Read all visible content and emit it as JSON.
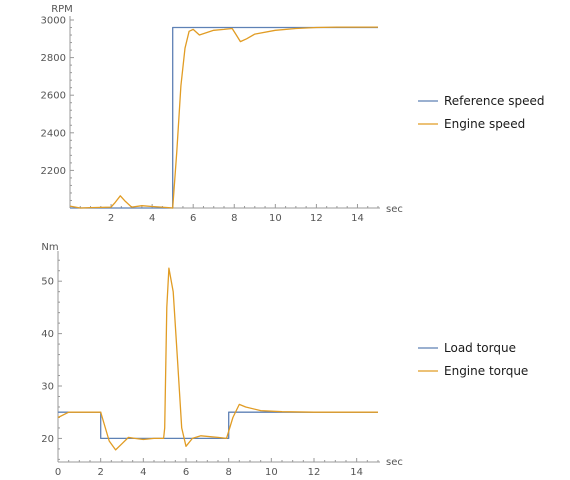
{
  "chart_data": [
    {
      "type": "line",
      "xlabel": "sec",
      "ylabel": "RPM",
      "xlim": [
        0,
        15
      ],
      "ylim": [
        2000,
        3000
      ],
      "x_ticks": [
        2,
        4,
        6,
        8,
        10,
        12,
        14
      ],
      "y_ticks": [
        2200,
        2400,
        2600,
        2800,
        3000
      ],
      "legend_position": "right",
      "series": [
        {
          "name": "Reference speed",
          "color": "#5e81b5",
          "points": [
            [
              0,
              2000
            ],
            [
              5,
              2000
            ],
            [
              5,
              2960
            ],
            [
              15,
              2960
            ]
          ]
        },
        {
          "name": "Engine speed",
          "color": "#e19c24",
          "points": [
            [
              0,
              2010
            ],
            [
              0.5,
              2000
            ],
            [
              1,
              2002
            ],
            [
              2,
              2005
            ],
            [
              2.2,
              2030
            ],
            [
              2.45,
              2065
            ],
            [
              2.7,
              2035
            ],
            [
              3,
              2005
            ],
            [
              3.5,
              2012
            ],
            [
              4,
              2008
            ],
            [
              4.8,
              2002
            ],
            [
              5,
              2000
            ],
            [
              5.2,
              2300
            ],
            [
              5.4,
              2650
            ],
            [
              5.6,
              2850
            ],
            [
              5.8,
              2940
            ],
            [
              6,
              2950
            ],
            [
              6.3,
              2920
            ],
            [
              7,
              2945
            ],
            [
              7.5,
              2950
            ],
            [
              7.9,
              2955
            ],
            [
              8.1,
              2920
            ],
            [
              8.3,
              2885
            ],
            [
              8.6,
              2900
            ],
            [
              9,
              2925
            ],
            [
              10,
              2945
            ],
            [
              11,
              2955
            ],
            [
              12,
              2960
            ],
            [
              13,
              2962
            ],
            [
              15,
              2962
            ]
          ]
        }
      ]
    },
    {
      "type": "line",
      "xlabel": "sec",
      "ylabel": "Nm",
      "xlim": [
        0,
        15
      ],
      "ylim": [
        15.5,
        55
      ],
      "x_ticks": [
        0,
        2,
        4,
        6,
        8,
        10,
        12,
        14
      ],
      "y_ticks": [
        20,
        30,
        40,
        50
      ],
      "legend_position": "right",
      "series": [
        {
          "name": "Load torque",
          "color": "#5e81b5",
          "points": [
            [
              0,
              25
            ],
            [
              2,
              25
            ],
            [
              2,
              20
            ],
            [
              8,
              20
            ],
            [
              8,
              25
            ],
            [
              15,
              25
            ]
          ]
        },
        {
          "name": "Engine torque",
          "color": "#e19c24",
          "points": [
            [
              0,
              24
            ],
            [
              0.5,
              25
            ],
            [
              1,
              25
            ],
            [
              2,
              25
            ],
            [
              2.4,
              19.5
            ],
            [
              2.7,
              17.8
            ],
            [
              3,
              19
            ],
            [
              3.3,
              20.2
            ],
            [
              3.6,
              20
            ],
            [
              4,
              19.8
            ],
            [
              4.5,
              20
            ],
            [
              4.95,
              20
            ],
            [
              5,
              22
            ],
            [
              5.1,
              45
            ],
            [
              5.2,
              52.5
            ],
            [
              5.4,
              48
            ],
            [
              5.6,
              35
            ],
            [
              5.8,
              22
            ],
            [
              6,
              18.5
            ],
            [
              6.3,
              20
            ],
            [
              6.7,
              20.5
            ],
            [
              7.5,
              20.2
            ],
            [
              7.9,
              20
            ],
            [
              8.2,
              24
            ],
            [
              8.5,
              26.5
            ],
            [
              8.8,
              26
            ],
            [
              9.5,
              25.3
            ],
            [
              10.5,
              25.1
            ],
            [
              12,
              25
            ],
            [
              15,
              25
            ]
          ]
        }
      ]
    }
  ]
}
